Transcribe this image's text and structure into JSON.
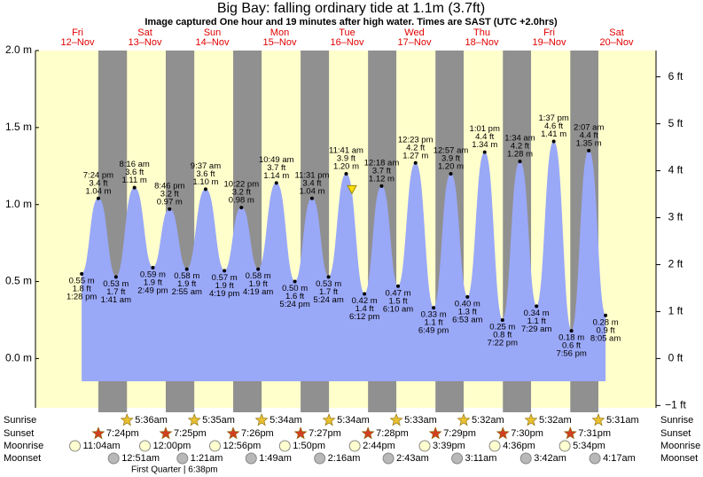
{
  "chart_data": {
    "type": "area",
    "title": "Big Bay: falling  ordinary tide at 1.1m (3.7ft)",
    "subtitle": "Image captured One hour and 19 minutes after high water. Times are SAST (UTC +2.0hrs)",
    "days": [
      "Fri",
      "Sat",
      "Sun",
      "Mon",
      "Tue",
      "Wed",
      "Thu",
      "Fri",
      "Sat"
    ],
    "dates": [
      "12–Nov",
      "13–Nov",
      "14–Nov",
      "15–Nov",
      "16–Nov",
      "17–Nov",
      "18–Nov",
      "19–Nov",
      "20–Nov"
    ],
    "x": [
      "1:28 pm",
      "7:24 pm",
      "1:41 am",
      "8:16 am",
      "2:49 pm",
      "8:46 pm",
      "2:55 am",
      "9:37 am",
      "4:19 pm",
      "10:22 pm",
      "4:19 am",
      "10:49 am",
      "5:24 pm",
      "11:31 pm",
      "5:24 am",
      "11:41 am",
      "6:12 pm",
      "12:18 am",
      "6:10 am",
      "12:23 pm",
      "6:49 pm",
      "12:57 am",
      "6:53 am",
      "1:01 pm",
      "7:22 pm",
      "1:34 am",
      "7:29 am",
      "1:37 pm",
      "7:56 pm",
      "2:07 am",
      "8:05 am"
    ],
    "values": [
      0.55,
      1.04,
      0.53,
      1.11,
      0.59,
      0.97,
      0.58,
      1.1,
      0.57,
      0.98,
      0.58,
      1.14,
      0.5,
      1.04,
      0.53,
      1.2,
      0.42,
      1.12,
      0.47,
      1.27,
      0.33,
      1.2,
      0.4,
      1.34,
      0.25,
      1.28,
      0.34,
      1.41,
      0.18,
      1.35,
      0.28
    ],
    "value_labels": [
      "0.55 m",
      "1.04 m",
      "0.53 m",
      "1.11 m",
      "0.59 m",
      "0.97 m",
      "0.58 m",
      "1.10 m",
      "0.57 m",
      "0.98 m",
      "0.58 m",
      "1.14 m",
      "0.50 m",
      "1.04 m",
      "0.53 m",
      "1.20 m",
      "0.42 m",
      "1.12 m",
      "0.47 m",
      "1.27 m",
      "0.33 m",
      "1.20 m",
      "0.40 m",
      "1.34 m",
      "0.25 m",
      "1.28 m",
      "0.34 m",
      "1.41 m",
      "0.18 m",
      "1.35 m",
      "0.28 m"
    ],
    "ft_labels": [
      "1.8 ft",
      "3.4 ft",
      "1.7 ft",
      "3.6 ft",
      "1.9 ft",
      "3.2 ft",
      "1.9 ft",
      "3.6 ft",
      "1.9 ft",
      "3.2 ft",
      "1.9 ft",
      "3.7 ft",
      "1.6 ft",
      "3.4 ft",
      "1.7 ft",
      "3.9 ft",
      "1.4 ft",
      "3.7 ft",
      "1.5 ft",
      "4.2 ft",
      "1.1 ft",
      "3.9 ft",
      "1.3 ft",
      "4.4 ft",
      "0.8 ft",
      "4.2 ft",
      "1.1 ft",
      "4.6 ft",
      "0.6 ft",
      "4.4 ft",
      "0.9 ft"
    ],
    "color": "#9aa8f8",
    "current_level": 1.1,
    "ylim": [
      -0.32,
      2.0
    ],
    "yticks": [
      {
        "value": 2,
        "label": "2.0 m"
      },
      {
        "value": 1.5,
        "label": "1.5 m"
      },
      {
        "value": 1,
        "label": "1.0 m"
      },
      {
        "value": 0.5,
        "label": "0.5 m"
      },
      {
        "value": 0,
        "label": "0.0 m"
      }
    ],
    "y2lim": [
      -1.05,
      6.56
    ],
    "y2ticks": [
      {
        "value": 6,
        "label": "6 ft"
      },
      {
        "value": 5,
        "label": "5 ft"
      },
      {
        "value": 4,
        "label": "4 ft"
      },
      {
        "value": 3,
        "label": "3 ft"
      },
      {
        "value": 2,
        "label": "2 ft"
      },
      {
        "value": 1,
        "label": "1 ft"
      },
      {
        "value": 0,
        "label": "0 ft"
      },
      {
        "value": -1,
        "label": "−1 ft"
      }
    ],
    "almanac": {
      "row_labels": [
        "Sunrise",
        "Sunset",
        "Moonrise",
        "Moonset"
      ],
      "sunrise": [
        "5:36am",
        "5:35am",
        "5:34am",
        "5:34am",
        "5:33am",
        "5:32am",
        "5:32am",
        "5:31am"
      ],
      "sunset": [
        "7:24pm",
        "7:25pm",
        "7:26pm",
        "7:27pm",
        "7:28pm",
        "7:29pm",
        "7:30pm",
        "7:31pm"
      ],
      "moonrise": [
        "11:04am",
        "12:00pm",
        "12:56pm",
        "1:50pm",
        "2:44pm",
        "3:39pm",
        "4:36pm",
        "5:34pm"
      ],
      "moonset": [
        "12:51am",
        "1:21am",
        "1:49am",
        "2:16am",
        "2:43am",
        "3:11am",
        "3:42am",
        "4:17am"
      ],
      "moon_phase": "First Quarter | 6:38pm"
    }
  }
}
